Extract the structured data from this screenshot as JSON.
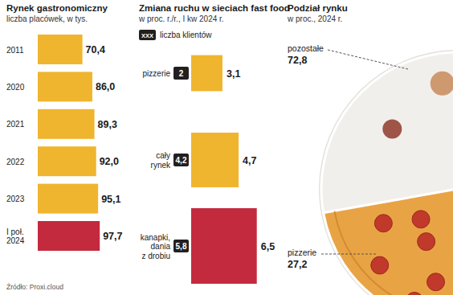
{
  "chart_data": [
    {
      "type": "bar",
      "orientation": "horizontal",
      "title": "Rynek gastronomiczny",
      "subtitle": "liczba placówek, w tys.",
      "categories": [
        "2011",
        "2020",
        "2021",
        "2022",
        "2023",
        "I poł.\n2024"
      ],
      "values": [
        70.4,
        86.0,
        89.3,
        92.0,
        95.1,
        97.7
      ],
      "value_labels": [
        "70,4",
        "86,0",
        "89,3",
        "92,0",
        "95,1",
        "97,7"
      ],
      "colors": [
        "#f0b52e",
        "#f0b52e",
        "#f0b52e",
        "#f0b52e",
        "#f0b52e",
        "#c42a3d"
      ],
      "xlim": [
        0,
        100
      ],
      "data_labels": true,
      "tick_labels": "y"
    },
    {
      "type": "bar",
      "orientation": "horizontal",
      "title": "Zmiana ruchu w sieciach fast food",
      "subtitle": "w proc. r./r., I kw 2024 r.",
      "annotations": [
        "XXX"
      ],
      "categories": [
        "pizzerie",
        "cały\nrynek",
        "kanapki,\ndania\nz drobiu"
      ],
      "values": [
        3.1,
        4.7,
        6.5
      ],
      "value_labels": [
        "3,1",
        "4,7",
        "6,5"
      ],
      "colors": [
        "#f0b52e",
        "#f0b52e",
        "#c42a3d"
      ],
      "xlim": [
        0,
        7
      ],
      "data_labels": true,
      "tick_labels": "y",
      "clients": {
        "name": "liczba klientów",
        "values": [
          2,
          4.2,
          5.8
        ],
        "value_labels": [
          "2",
          "4,2",
          "5,8"
        ],
        "color": "#231f20"
      }
    },
    {
      "type": "pie",
      "title": "Podział rynku",
      "subtitle": "w proc., 2024 r.",
      "categories": [
        "pozostałe",
        "pizzerie"
      ],
      "values": [
        72.8,
        27.2
      ],
      "value_labels": [
        "72,8",
        "27,2"
      ],
      "colors": [
        "#f1efec",
        "#e8a444"
      ],
      "data_labels": true
    }
  ],
  "source": "Źródło: Proxi.cloud"
}
